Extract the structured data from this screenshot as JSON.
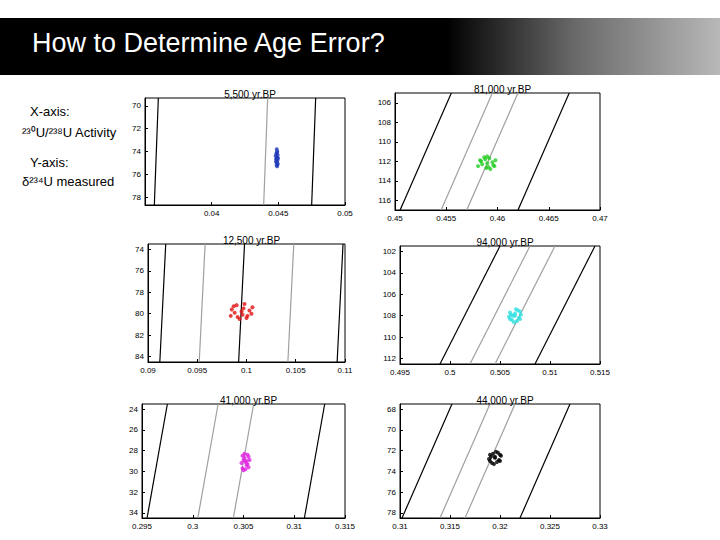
{
  "slide": {
    "title": "How to Determine Age Error?",
    "labels": [
      "X-axis:",
      "²³⁰U/²³⁸U Activity",
      "Y-axis:",
      "δ²³⁴U measured"
    ]
  },
  "chart_data": [
    {
      "type": "scatter",
      "title": "5,500 yr.BP",
      "xlim": [
        0.035,
        0.05
      ],
      "xticks": [
        0.04,
        0.045,
        0.05
      ],
      "ylim": [
        78.7,
        69.3
      ],
      "yticks": [
        70,
        72,
        74,
        76,
        78
      ],
      "series": [
        {
          "type": "scatter",
          "color": "#1f3ab8",
          "values": [
            [
              0.04488,
              73.8
            ],
            [
              0.04492,
              74.0
            ],
            [
              0.04485,
              74.2
            ],
            [
              0.04495,
              74.3
            ],
            [
              0.0448,
              74.4
            ],
            [
              0.0449,
              74.5
            ],
            [
              0.04498,
              74.6
            ],
            [
              0.04486,
              74.7
            ],
            [
              0.04493,
              74.8
            ],
            [
              0.04482,
              74.9
            ],
            [
              0.0449,
              75.0
            ],
            [
              0.04496,
              75.1
            ],
            [
              0.04487,
              75.2
            ],
            [
              0.04491,
              75.3
            ],
            [
              0.04489,
              74.1
            ],
            [
              0.04484,
              74.65
            ]
          ]
        },
        {
          "type": "line",
          "color": "#000000",
          "values": [
            [
              0.0357,
              78.7
            ],
            [
              0.036,
              69.3
            ]
          ]
        },
        {
          "type": "line",
          "color": "#a0a0a0",
          "values": [
            [
              0.0439,
              78.7
            ],
            [
              0.0442,
              69.3
            ]
          ]
        },
        {
          "type": "line",
          "color": "#000000",
          "values": [
            [
              0.0475,
              78.7
            ],
            [
              0.0478,
              69.3
            ]
          ]
        }
      ]
    },
    {
      "type": "scatter",
      "title": "81,000 yr.BP",
      "xlim": [
        0.45,
        0.47
      ],
      "xticks": [
        0.45,
        0.455,
        0.46,
        0.465,
        0.47
      ],
      "ylim": [
        117,
        105
      ],
      "yticks": [
        106,
        108,
        110,
        112,
        114,
        116
      ],
      "series": [
        {
          "type": "scatter",
          "color": "#22cc22",
          "values": [
            [
              0.459,
              112.2
            ],
            [
              0.4584,
              112.0
            ],
            [
              0.4596,
              112.4
            ],
            [
              0.4587,
              111.6
            ],
            [
              0.4593,
              112.8
            ],
            [
              0.4581,
              112.5
            ],
            [
              0.4598,
              111.9
            ],
            [
              0.4589,
              112.7
            ],
            [
              0.4592,
              111.7
            ],
            [
              0.4585,
              112.3
            ],
            [
              0.4595,
              112.1
            ],
            [
              0.4588,
              111.8
            ],
            [
              0.4591,
              112.6
            ],
            [
              0.4583,
              111.9
            ],
            [
              0.4597,
              112.5
            ],
            [
              0.459,
              111.5
            ]
          ]
        },
        {
          "type": "line",
          "color": "#000000",
          "values": [
            [
              0.4505,
              117
            ],
            [
              0.4555,
              105
            ]
          ]
        },
        {
          "type": "line",
          "color": "#a0a0a0",
          "values": [
            [
              0.4545,
              117
            ],
            [
              0.4595,
              105
            ]
          ]
        },
        {
          "type": "line",
          "color": "#a0a0a0",
          "values": [
            [
              0.457,
              117
            ],
            [
              0.462,
              105
            ]
          ]
        },
        {
          "type": "line",
          "color": "#000000",
          "values": [
            [
              0.462,
              117
            ],
            [
              0.467,
              105
            ]
          ]
        }
      ]
    },
    {
      "type": "scatter",
      "title": "12,500 yr.BP",
      "xlim": [
        0.09,
        0.11
      ],
      "xticks": [
        0.09,
        0.095,
        0.1,
        0.105,
        0.11
      ],
      "ylim": [
        84.5,
        73.5
      ],
      "yticks": [
        74,
        76,
        78,
        80,
        82,
        84
      ],
      "series": [
        {
          "type": "scatter",
          "color": "#e01010",
          "values": [
            [
              0.0995,
              79.8
            ],
            [
              0.0985,
              79.6
            ],
            [
              0.1005,
              80.0
            ],
            [
              0.099,
              79.2
            ],
            [
              0.1,
              80.4
            ],
            [
              0.0984,
              80.2
            ],
            [
              0.1006,
              79.4
            ],
            [
              0.0993,
              80.5
            ],
            [
              0.0998,
              79.1
            ],
            [
              0.0988,
              79.9
            ],
            [
              0.1003,
              79.7
            ],
            [
              0.0991,
              80.3
            ],
            [
              0.0997,
              79.5
            ],
            [
              0.1001,
              80.2
            ],
            [
              0.0987,
              79.3
            ],
            [
              0.0996,
              80.1
            ]
          ]
        },
        {
          "type": "line",
          "color": "#000000",
          "values": [
            [
              0.0912,
              84.5
            ],
            [
              0.0918,
              73.5
            ]
          ]
        },
        {
          "type": "line",
          "color": "#a0a0a0",
          "values": [
            [
              0.0952,
              84.5
            ],
            [
              0.0958,
              73.5
            ]
          ]
        },
        {
          "type": "line",
          "color": "#000000",
          "values": [
            [
              0.0992,
              84.5
            ],
            [
              0.0998,
              73.5
            ]
          ]
        },
        {
          "type": "line",
          "color": "#a0a0a0",
          "values": [
            [
              0.1042,
              84.5
            ],
            [
              0.1048,
              73.5
            ]
          ]
        },
        {
          "type": "line",
          "color": "#000000",
          "values": [
            [
              0.1092,
              84.5
            ],
            [
              0.1098,
              73.5
            ]
          ]
        }
      ]
    },
    {
      "type": "scatter",
      "title": "94,000 yr.BP",
      "xlim": [
        0.495,
        0.515
      ],
      "xticks": [
        0.495,
        0.5,
        0.505,
        0.51,
        0.515
      ],
      "ylim": [
        112.5,
        101.5
      ],
      "yticks": [
        102,
        104,
        106,
        108,
        110,
        112
      ],
      "series": [
        {
          "type": "scatter",
          "color": "#30e0e0",
          "values": [
            [
              0.5065,
              108.0
            ],
            [
              0.506,
              107.7
            ],
            [
              0.507,
              108.3
            ],
            [
              0.5062,
              108.4
            ],
            [
              0.5068,
              107.5
            ],
            [
              0.5059,
              108.1
            ],
            [
              0.5071,
              107.9
            ],
            [
              0.5064,
              108.6
            ],
            [
              0.5066,
              107.4
            ],
            [
              0.5061,
              107.9
            ],
            [
              0.5069,
              108.2
            ],
            [
              0.5063,
              108.0
            ],
            [
              0.5067,
              108.5
            ],
            [
              0.506,
              108.3
            ],
            [
              0.507,
              107.6
            ],
            [
              0.5065,
              107.8
            ]
          ]
        },
        {
          "type": "line",
          "color": "#000000",
          "values": [
            [
              0.499,
              112.5
            ],
            [
              0.505,
              101.5
            ]
          ]
        },
        {
          "type": "line",
          "color": "#a0a0a0",
          "values": [
            [
              0.502,
              112.5
            ],
            [
              0.508,
              101.5
            ]
          ]
        },
        {
          "type": "line",
          "color": "#a0a0a0",
          "values": [
            [
              0.5045,
              112.5
            ],
            [
              0.5105,
              101.5
            ]
          ]
        },
        {
          "type": "line",
          "color": "#000000",
          "values": [
            [
              0.5085,
              112.5
            ],
            [
              0.5145,
              101.5
            ]
          ]
        }
      ]
    },
    {
      "type": "scatter",
      "title": "41,000 yr.BP",
      "xlim": [
        0.295,
        0.315
      ],
      "xticks": [
        0.295,
        0.3,
        0.305,
        0.31,
        0.315
      ],
      "ylim": [
        34.5,
        23.5
      ],
      "yticks": [
        24,
        26,
        28,
        30,
        32,
        34
      ],
      "series": [
        {
          "type": "scatter",
          "color": "#e020e0",
          "values": [
            [
              0.3052,
              29.1
            ],
            [
              0.3049,
              28.5
            ],
            [
              0.3055,
              29.6
            ],
            [
              0.305,
              29.9
            ],
            [
              0.3054,
              28.4
            ],
            [
              0.3048,
              29.2
            ],
            [
              0.3056,
              28.9
            ],
            [
              0.3051,
              28.7
            ],
            [
              0.3053,
              29.4
            ],
            [
              0.3049,
              29.7
            ],
            [
              0.3055,
              28.6
            ],
            [
              0.3052,
              29.8
            ],
            [
              0.305,
              28.9
            ],
            [
              0.3054,
              29.3
            ],
            [
              0.3051,
              28.3
            ],
            [
              0.3053,
              29.0
            ]
          ]
        },
        {
          "type": "line",
          "color": "#000000",
          "values": [
            [
              0.2955,
              34.5
            ],
            [
              0.2975,
              23.5
            ]
          ]
        },
        {
          "type": "line",
          "color": "#a0a0a0",
          "values": [
            [
              0.3005,
              34.5
            ],
            [
              0.3025,
              23.5
            ]
          ]
        },
        {
          "type": "line",
          "color": "#a0a0a0",
          "values": [
            [
              0.304,
              34.5
            ],
            [
              0.306,
              23.5
            ]
          ]
        },
        {
          "type": "line",
          "color": "#000000",
          "values": [
            [
              0.311,
              34.5
            ],
            [
              0.313,
              23.5
            ]
          ]
        }
      ]
    },
    {
      "type": "scatter",
      "title": "44,000 yr.BP",
      "xlim": [
        0.31,
        0.33
      ],
      "xticks": [
        0.31,
        0.315,
        0.32,
        0.325,
        0.33
      ],
      "ylim": [
        78.5,
        67.5
      ],
      "yticks": [
        68,
        70,
        72,
        74,
        76,
        78
      ],
      "series": [
        {
          "type": "scatter",
          "color": "#000000",
          "values": [
            [
              0.3195,
              72.7
            ],
            [
              0.319,
              72.4
            ],
            [
              0.32,
              73.0
            ],
            [
              0.3192,
              73.2
            ],
            [
              0.3198,
              72.2
            ],
            [
              0.3189,
              72.8
            ],
            [
              0.3201,
              72.5
            ],
            [
              0.3194,
              73.3
            ],
            [
              0.3196,
              72.1
            ],
            [
              0.3191,
              72.6
            ],
            [
              0.3199,
              72.9
            ],
            [
              0.3193,
              72.3
            ],
            [
              0.3197,
              73.1
            ],
            [
              0.319,
              73.0
            ],
            [
              0.32,
              72.4
            ],
            [
              0.3195,
              72.6
            ]
          ]
        },
        {
          "type": "line",
          "color": "#000000",
          "values": [
            [
              0.3102,
              78.5
            ],
            [
              0.3152,
              67.5
            ]
          ]
        },
        {
          "type": "line",
          "color": "#a0a0a0",
          "values": [
            [
              0.314,
              78.5
            ],
            [
              0.319,
              67.5
            ]
          ]
        },
        {
          "type": "line",
          "color": "#a0a0a0",
          "values": [
            [
              0.3165,
              78.5
            ],
            [
              0.3215,
              67.5
            ]
          ]
        },
        {
          "type": "line",
          "color": "#000000",
          "values": [
            [
              0.322,
              78.5
            ],
            [
              0.327,
              67.5
            ]
          ]
        }
      ]
    }
  ]
}
